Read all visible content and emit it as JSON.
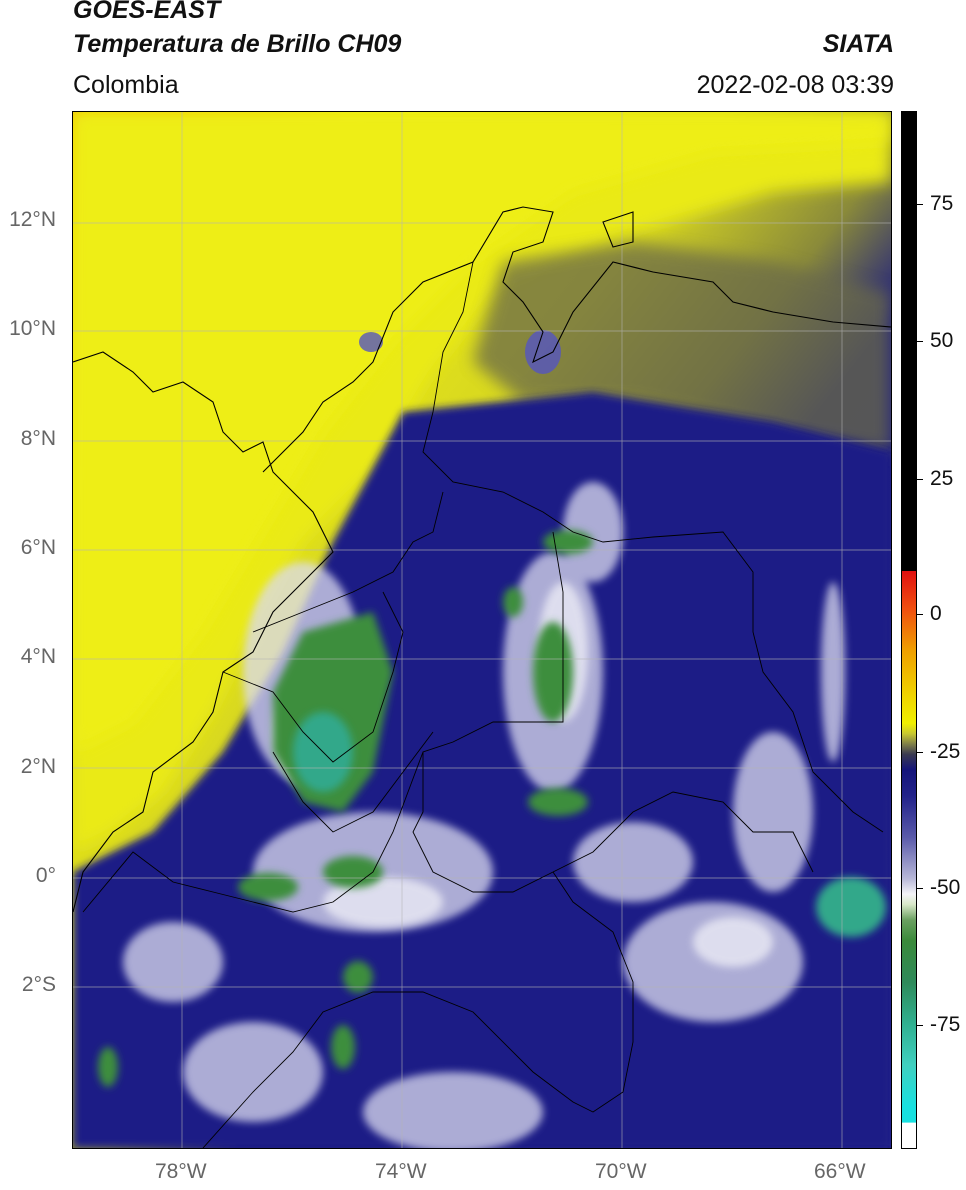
{
  "header": {
    "satellite": "GOES-EAST",
    "product": "Temperatura de Brillo CH09",
    "organization": "SIATA",
    "region": "Colombia",
    "datetime": "2022-02-08 03:39"
  },
  "map": {
    "lat_labels": [
      "12°N",
      "10°N",
      "8°N",
      "6°N",
      "4°N",
      "2°N",
      "0°",
      "2°S"
    ],
    "lon_labels": [
      "78°W",
      "74°W",
      "70°W",
      "66°W"
    ]
  },
  "colorbar": {
    "tick_labels": [
      "75",
      "50",
      "25",
      "0",
      "-25",
      "-50",
      "-75"
    ],
    "colors": {
      "black": "#000000",
      "red": "#e01010",
      "orange": "#f0a000",
      "yellow": "#f0f000",
      "olive": "#707040",
      "navy": "#14147a",
      "blue": "#3a3a9a",
      "white": "#f4f4f8",
      "green": "#3a8a3a",
      "teal": "#30b090",
      "cyan": "#18e0e0"
    }
  }
}
